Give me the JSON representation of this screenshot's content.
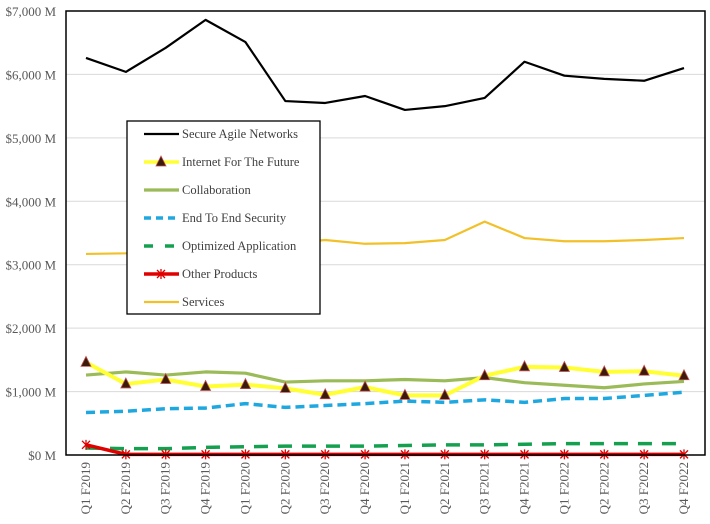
{
  "chart_data": {
    "type": "line",
    "title": "",
    "xlabel": "",
    "ylabel": "",
    "ylim": [
      0,
      7000
    ],
    "y_tick_values": [
      0,
      1000,
      2000,
      3000,
      4000,
      5000,
      6000,
      7000
    ],
    "y_tick_labels": [
      "$0 M",
      "$1,000 M",
      "$2,000 M",
      "$3,000 M",
      "$4,000 M",
      "$5,000 M",
      "$6,000 M",
      "$7,000 M"
    ],
    "grid": true,
    "legend_position": "inside-left",
    "categories": [
      "Q1 F2019",
      "Q2 F2019",
      "Q3 F2019",
      "Q4 F2019",
      "Q1 F2020",
      "Q2 F2020",
      "Q3 F2020",
      "Q4 F2020",
      "Q1 F2021",
      "Q2 F2021",
      "Q3 F2021",
      "Q4 F2021",
      "Q1 F2022",
      "Q2 F2022",
      "Q3 F2022",
      "Q4 F2022"
    ],
    "series": [
      {
        "name": "Secure Agile Networks",
        "color": "#000000",
        "style": "solid",
        "marker": "none",
        "values": [
          6260,
          6040,
          6420,
          6860,
          6510,
          5580,
          5550,
          5660,
          5440,
          5500,
          5630,
          6200,
          5980,
          5930,
          5900,
          6100
        ]
      },
      {
        "name": "Internet For The Future",
        "color": "#ffff33",
        "style": "solid",
        "marker": "triangle",
        "values": [
          1460,
          1120,
          1190,
          1080,
          1110,
          1050,
          950,
          1070,
          940,
          940,
          1250,
          1390,
          1380,
          1310,
          1320,
          1250
        ]
      },
      {
        "name": "Collaboration",
        "color": "#9bbb59",
        "style": "solid",
        "marker": "none",
        "values": [
          1260,
          1310,
          1260,
          1310,
          1290,
          1150,
          1170,
          1170,
          1190,
          1170,
          1220,
          1140,
          1100,
          1060,
          1120,
          1160
        ]
      },
      {
        "name": "End To End Security",
        "color": "#1fa8e0",
        "style": "dashed",
        "marker": "none",
        "values": [
          670,
          690,
          730,
          740,
          810,
          750,
          780,
          810,
          850,
          830,
          870,
          830,
          890,
          890,
          940,
          990
        ]
      },
      {
        "name": "Optimized Application",
        "color": "#15a050",
        "style": "longdash",
        "marker": "none",
        "values": [
          110,
          100,
          100,
          120,
          130,
          140,
          140,
          140,
          150,
          160,
          160,
          170,
          180,
          180,
          180,
          180
        ]
      },
      {
        "name": "Other Products",
        "color": "#e00000",
        "style": "solid",
        "marker": "star",
        "values": [
          160,
          10,
          10,
          10,
          10,
          10,
          10,
          10,
          10,
          10,
          10,
          10,
          10,
          10,
          10,
          10
        ]
      },
      {
        "name": "Services",
        "color": "#f2c029",
        "style": "solid",
        "marker": "none",
        "values": [
          3170,
          3180,
          3250,
          3300,
          3330,
          3330,
          3390,
          3330,
          3340,
          3390,
          3680,
          3420,
          3370,
          3370,
          3390,
          3420
        ]
      }
    ]
  }
}
